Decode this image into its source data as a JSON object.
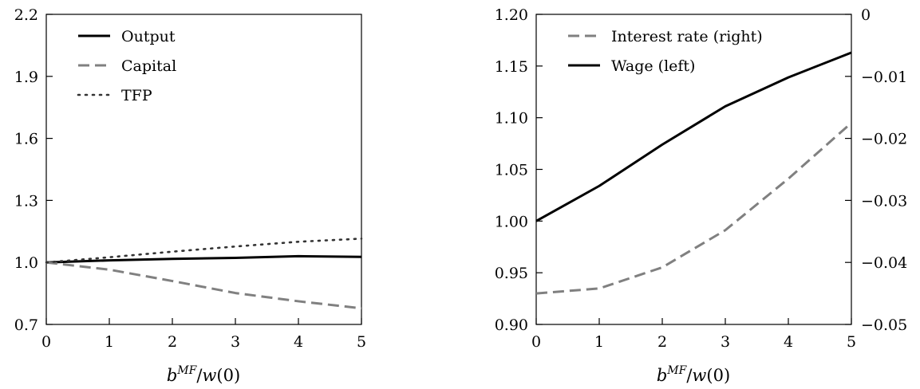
{
  "chart_data": [
    {
      "type": "line",
      "xlabel": "b^MF/w(0)",
      "x": [
        0,
        1,
        2,
        3,
        4,
        5
      ],
      "xlim": [
        0,
        5
      ],
      "xticks": [
        0,
        1,
        2,
        3,
        4,
        5
      ],
      "ylim": [
        0.7,
        2.2
      ],
      "yticks": [
        "0.7",
        "1.0",
        "1.3",
        "1.6",
        "1.9",
        "2.2"
      ],
      "legend_position": "top-left",
      "series": [
        {
          "name": "Output",
          "style": "solid",
          "color": "#000000",
          "values": [
            1.0,
            1.01,
            1.017,
            1.022,
            1.03,
            1.027
          ]
        },
        {
          "name": "Capital",
          "style": "dashed",
          "color": "#808080",
          "values": [
            1.0,
            0.965,
            0.91,
            0.852,
            0.812,
            0.778
          ]
        },
        {
          "name": "TFP",
          "style": "dotted",
          "color": "#333333",
          "values": [
            1.0,
            1.025,
            1.052,
            1.077,
            1.1,
            1.115
          ]
        }
      ]
    },
    {
      "type": "line",
      "xlabel": "b^MF/w(0)",
      "x": [
        0,
        1,
        2,
        3,
        4,
        5
      ],
      "xlim": [
        0,
        5
      ],
      "xticks": [
        0,
        1,
        2,
        3,
        4,
        5
      ],
      "ylim_left": [
        0.9,
        1.2
      ],
      "yticks_left": [
        "0.90",
        "0.95",
        "1.00",
        "1.05",
        "1.10",
        "1.15",
        "1.20"
      ],
      "ylim_right": [
        -0.05,
        0
      ],
      "yticks_right": [
        "−0.05",
        "−0.04",
        "−0.03",
        "−0.02",
        "−0.01",
        "0"
      ],
      "legend_position": "top-left",
      "series": [
        {
          "name": "Interest rate (right)",
          "style": "dashed",
          "color": "#808080",
          "axis": "right",
          "values": [
            -0.045,
            -0.0442,
            -0.0408,
            -0.0348,
            -0.0265,
            -0.0175
          ]
        },
        {
          "name": "Wage (left)",
          "style": "solid",
          "color": "#000000",
          "axis": "left",
          "values": [
            1.0,
            1.034,
            1.074,
            1.111,
            1.139,
            1.163
          ]
        }
      ]
    }
  ]
}
